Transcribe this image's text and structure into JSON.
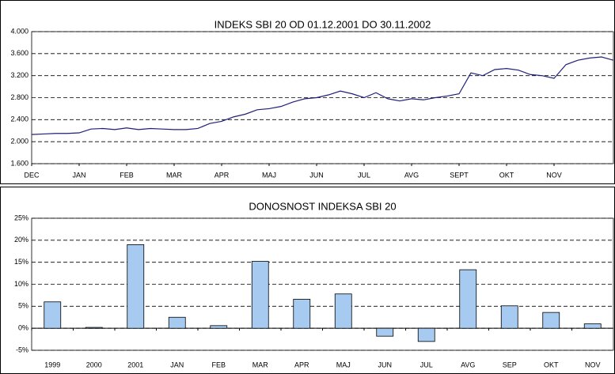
{
  "chart_data": [
    {
      "type": "line",
      "title": "INDEKS SBI 20 OD 01.12.2001 DO 30.11.2002",
      "categories": [
        "DEC",
        null,
        null,
        null,
        "JAN",
        null,
        null,
        null,
        "FEB",
        null,
        null,
        null,
        "MAR",
        null,
        null,
        null,
        "APR",
        null,
        null,
        null,
        "MAJ",
        null,
        null,
        null,
        "JUN",
        null,
        null,
        null,
        "JUL",
        null,
        null,
        null,
        "AVG",
        null,
        null,
        null,
        "SEPT",
        null,
        null,
        null,
        "OKT",
        null,
        null,
        null,
        "NOV",
        null,
        null,
        null,
        null,
        null
      ],
      "series": [
        {
          "name": "SBI 20",
          "color": "#1f1f7a",
          "values": [
            2130,
            2140,
            2150,
            2150,
            2160,
            2230,
            2240,
            2220,
            2250,
            2220,
            2240,
            2230,
            2220,
            2220,
            2240,
            2330,
            2370,
            2450,
            2500,
            2580,
            2600,
            2640,
            2720,
            2780,
            2800,
            2850,
            2920,
            2870,
            2800,
            2890,
            2780,
            2740,
            2780,
            2760,
            2800,
            2830,
            2870,
            3250,
            3200,
            3310,
            3330,
            3300,
            3220,
            3200,
            3150,
            3400,
            3480,
            3520,
            3540,
            3480
          ]
        }
      ],
      "ylim": [
        1600,
        4000
      ],
      "yticks": [
        {
          "value": 1600,
          "label": "1.600"
        },
        {
          "value": 2000,
          "label": "2.000"
        },
        {
          "value": 2400,
          "label": "2.400"
        },
        {
          "value": 2800,
          "label": "2.800"
        },
        {
          "value": 3200,
          "label": "3.200"
        },
        {
          "value": 3600,
          "label": "3.600"
        },
        {
          "value": 4000,
          "label": "4.000"
        }
      ],
      "grid": true
    },
    {
      "type": "bar",
      "title": "DONOSNOST INDEKSA SBI 20",
      "categories": [
        "1999",
        "2000",
        "2001",
        "JAN",
        "FEB",
        "MAR",
        "APR",
        "MAJ",
        "JUN",
        "JUL",
        "AVG",
        "SEP",
        "OKT",
        "NOV"
      ],
      "series": [
        {
          "name": "Donosnost",
          "color": "#a6caf0",
          "values": [
            6,
            0.2,
            19,
            2.5,
            0.6,
            15.2,
            6.6,
            7.8,
            -1.8,
            -3,
            13.3,
            5.1,
            3.6,
            1
          ]
        }
      ],
      "ylim": [
        -5,
        25
      ],
      "yticks": [
        {
          "value": -5,
          "label": "-5%"
        },
        {
          "value": 0,
          "label": "0%"
        },
        {
          "value": 5,
          "label": "5%"
        },
        {
          "value": 10,
          "label": "10%"
        },
        {
          "value": 15,
          "label": "15%"
        },
        {
          "value": 20,
          "label": "20%"
        },
        {
          "value": 25,
          "label": "25%"
        }
      ],
      "grid": true
    }
  ]
}
